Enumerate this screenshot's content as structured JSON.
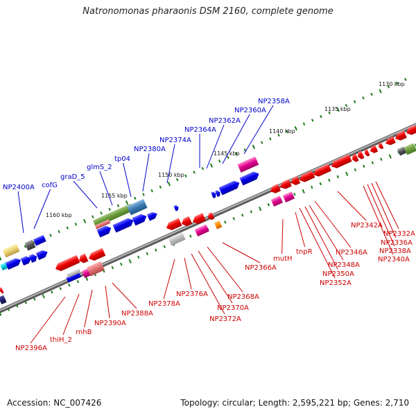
{
  "title": "Natronomonas pharaonis DSM 2160, complete genome",
  "accession": "Accession: NC_007426",
  "summary": "Topology: circular; Length: 2,595,221 bp; Genes: 2,710",
  "scale_labels": [
    "1130 kbp",
    "1135 kbp",
    "1140 kbp",
    "1145 kbp",
    "1150 kbp",
    "1155 kbp",
    "1160 kbp"
  ],
  "forward_gene_labels": [
    "NP2358A",
    "NP2360A",
    "NP2362A",
    "NP2364A",
    "NP2374A",
    "NP2380A",
    "tp04",
    "glmS_2",
    "graD_5",
    "cofG",
    "NP2400A"
  ],
  "reverse_gene_labels": [
    "NP2332A",
    "NP2336A",
    "NP2338A",
    "NP2340A",
    "NP2342A",
    "NP2346A",
    "NP2348A",
    "NP2350A",
    "NP2352A",
    "tnpR",
    "mutH",
    "NP2366A",
    "NP2368A",
    "NP2370A",
    "NP2372A",
    "NP2376A",
    "NP2378A",
    "NP2388A",
    "NP2390A",
    "rnhB",
    "thiH_2",
    "NP2396A"
  ],
  "colors": {
    "forward_label": "#0000cc",
    "reverse_label": "#cc0000",
    "backbone": "#8a8a8a",
    "tick": "#1a7a1a"
  }
}
